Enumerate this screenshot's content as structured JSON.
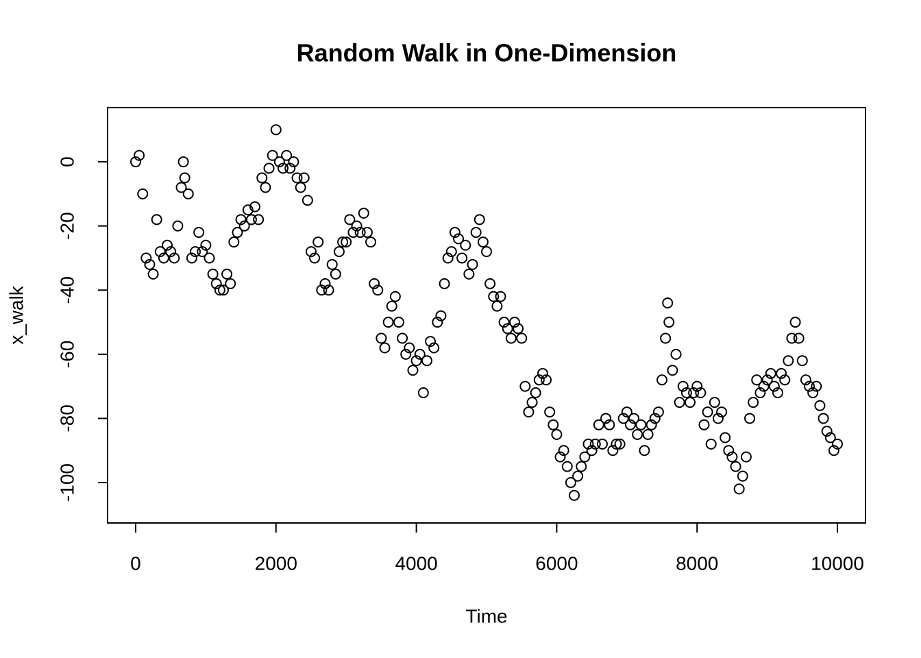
{
  "chart_data": {
    "type": "scatter",
    "title": "Random Walk in One-Dimension",
    "x_label": "Time",
    "y_label": "x_walk",
    "color": "#000000",
    "marker": "open-circle",
    "x": [
      0,
      50,
      100,
      150,
      200,
      250,
      300,
      350,
      400,
      450,
      500,
      550,
      600,
      650,
      680,
      700,
      750,
      800,
      850,
      900,
      950,
      1000,
      1050,
      1100,
      1150,
      1200,
      1250,
      1300,
      1350,
      1400,
      1450,
      1500,
      1550,
      1600,
      1650,
      1700,
      1750,
      1800,
      1850,
      1900,
      1950,
      2000,
      2050,
      2100,
      2150,
      2200,
      2250,
      2300,
      2350,
      2400,
      2450,
      2500,
      2550,
      2600,
      2650,
      2700,
      2750,
      2800,
      2850,
      2900,
      2950,
      3000,
      3050,
      3100,
      3150,
      3200,
      3250,
      3300,
      3350,
      3400,
      3450,
      3500,
      3550,
      3600,
      3650,
      3700,
      3750,
      3800,
      3850,
      3900,
      3950,
      4000,
      4050,
      4100,
      4150,
      4200,
      4250,
      4300,
      4350,
      4400,
      4450,
      4500,
      4550,
      4600,
      4650,
      4700,
      4750,
      4800,
      4850,
      4900,
      4950,
      5000,
      5050,
      5100,
      5150,
      5200,
      5250,
      5300,
      5350,
      5400,
      5450,
      5500,
      5550,
      5600,
      5650,
      5700,
      5750,
      5800,
      5850,
      5900,
      5950,
      6000,
      6050,
      6100,
      6150,
      6200,
      6250,
      6300,
      6350,
      6400,
      6450,
      6500,
      6550,
      6600,
      6650,
      6700,
      6750,
      6800,
      6850,
      6900,
      6950,
      7000,
      7050,
      7100,
      7150,
      7200,
      7250,
      7300,
      7350,
      7400,
      7450,
      7500,
      7550,
      7580,
      7600,
      7650,
      7700,
      7750,
      7800,
      7850,
      7900,
      7950,
      8000,
      8050,
      8100,
      8150,
      8200,
      8250,
      8300,
      8350,
      8400,
      8450,
      8500,
      8550,
      8600,
      8650,
      8700,
      8750,
      8800,
      8850,
      8900,
      8950,
      9000,
      9050,
      9100,
      9150,
      9200,
      9250,
      9300,
      9350,
      9400,
      9450,
      9500,
      9550,
      9600,
      9650,
      9700,
      9750,
      9800,
      9850,
      9900,
      9950,
      10000
    ],
    "values": [
      0,
      2,
      -10,
      -30,
      -32,
      -35,
      -18,
      -28,
      -30,
      -26,
      -28,
      -30,
      -20,
      -8,
      0,
      -5,
      -10,
      -30,
      -28,
      -22,
      -28,
      -26,
      -30,
      -35,
      -38,
      -40,
      -40,
      -35,
      -38,
      -25,
      -22,
      -18,
      -20,
      -15,
      -18,
      -14,
      -18,
      -5,
      -8,
      -2,
      2,
      10,
      0,
      -2,
      2,
      -2,
      0,
      -5,
      -8,
      -5,
      -12,
      -28,
      -30,
      -25,
      -40,
      -38,
      -40,
      -32,
      -35,
      -28,
      -25,
      -25,
      -18,
      -22,
      -20,
      -22,
      -16,
      -22,
      -25,
      -38,
      -40,
      -55,
      -58,
      -50,
      -45,
      -42,
      -50,
      -55,
      -60,
      -58,
      -65,
      -62,
      -60,
      -72,
      -62,
      -56,
      -58,
      -50,
      -48,
      -38,
      -30,
      -28,
      -22,
      -24,
      -30,
      -26,
      -35,
      -32,
      -22,
      -18,
      -25,
      -28,
      -38,
      -42,
      -45,
      -42,
      -50,
      -52,
      -55,
      -50,
      -52,
      -55,
      -70,
      -78,
      -75,
      -72,
      -68,
      -66,
      -68,
      -78,
      -82,
      -85,
      -92,
      -90,
      -95,
      -100,
      -104,
      -98,
      -95,
      -92,
      -88,
      -90,
      -88,
      -82,
      -88,
      -80,
      -82,
      -90,
      -88,
      -88,
      -80,
      -78,
      -82,
      -80,
      -85,
      -82,
      -90,
      -85,
      -82,
      -80,
      -78,
      -68,
      -55,
      -44,
      -50,
      -65,
      -60,
      -75,
      -70,
      -72,
      -75,
      -72,
      -70,
      -72,
      -82,
      -78,
      -88,
      -75,
      -80,
      -78,
      -86,
      -90,
      -92,
      -95,
      -102,
      -98,
      -92,
      -80,
      -75,
      -68,
      -72,
      -70,
      -68,
      -66,
      -70,
      -72,
      -66,
      -68,
      -62,
      -55,
      -50,
      -55,
      -62,
      -68,
      -70,
      -72,
      -70,
      -76,
      -80,
      -84,
      -86,
      -90,
      -88
    ],
    "xlim": [
      -400,
      10400
    ],
    "ylim": [
      -112.6,
      16.9
    ],
    "xticks": [
      0,
      2000,
      4000,
      6000,
      8000,
      10000
    ],
    "yticks": [
      0,
      -20,
      -40,
      -60,
      -80,
      -100
    ]
  }
}
